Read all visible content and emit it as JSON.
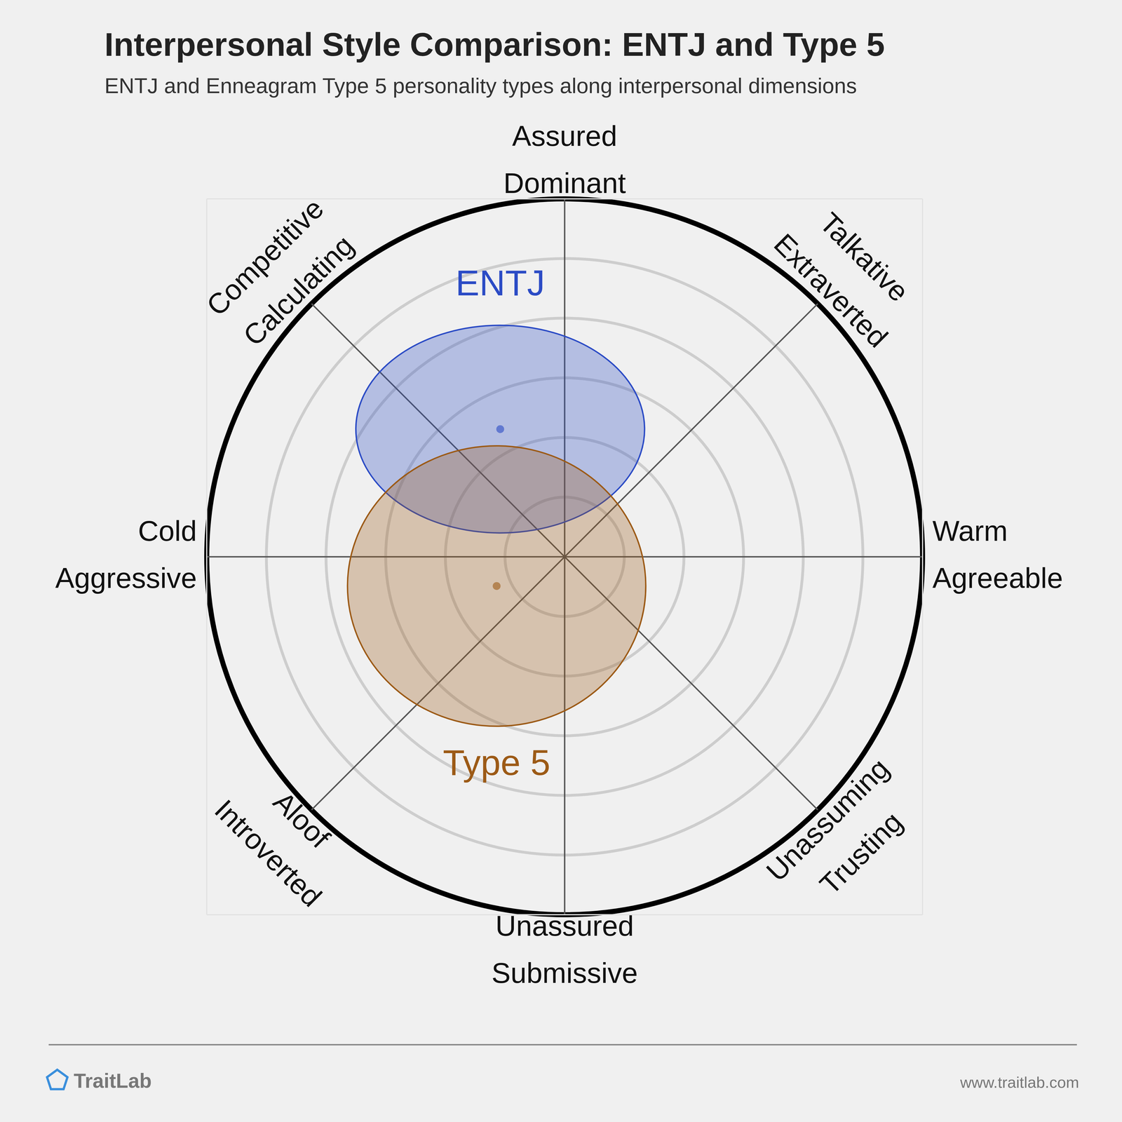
{
  "chart_data": {
    "type": "circumplex",
    "title": "Interpersonal Style Comparison: ENTJ and Type 5",
    "subtitle": "ENTJ and Enneagram Type 5 personality types along interpersonal dimensions",
    "axis_labels": [
      [
        "Assured",
        "Dominant"
      ],
      [
        "Talkative",
        "Extraverted"
      ],
      [
        "Warm",
        "Agreeable"
      ],
      [
        "Unassuming",
        "Trusting"
      ],
      [
        "Unassured",
        "Submissive"
      ],
      [
        "Aloof",
        "Introverted"
      ],
      [
        "Cold",
        "Aggressive"
      ],
      [
        "Competitive",
        "Calculating"
      ]
    ],
    "series": [
      {
        "name": "ENTJ",
        "color": "#2b4bc5",
        "x": -1.08,
        "y": 2.14,
        "x_spread": 2.42,
        "y_spread": 1.74
      },
      {
        "name": "Type 5",
        "color": "#9c5a16",
        "x": -1.14,
        "y": -0.49,
        "x_spread": 2.5,
        "y_spread": 2.35
      }
    ],
    "xlim": [
      -6,
      6
    ],
    "ylim": [
      -6,
      6
    ],
    "xticks": [
      -6,
      -2,
      2,
      6
    ],
    "yticks": [
      -6,
      -2,
      2,
      6
    ],
    "rings": [
      1,
      2,
      3,
      4,
      5,
      6
    ],
    "grid": true,
    "tick_labels": false,
    "footer": {
      "brand": "TraitLab",
      "url": "www.traitlab.com"
    }
  }
}
